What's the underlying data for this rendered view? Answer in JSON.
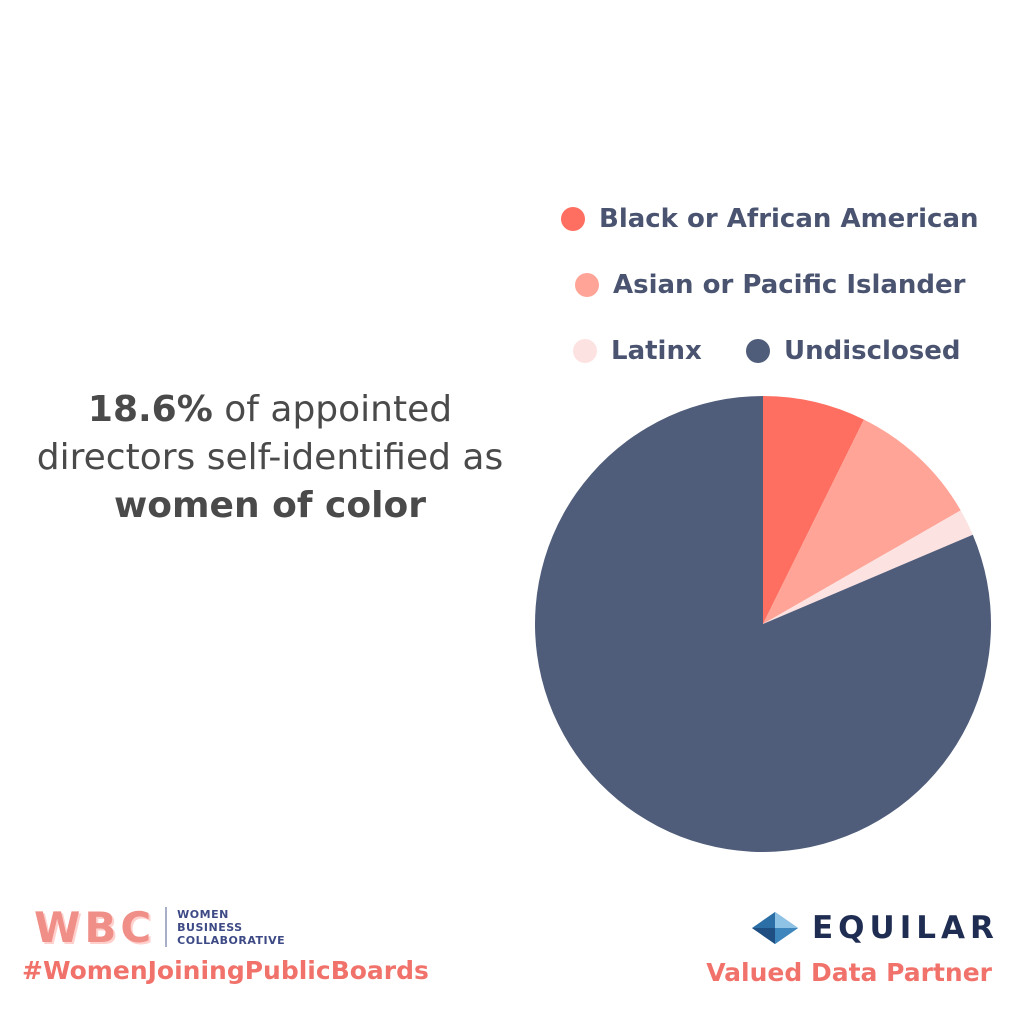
{
  "chart_data": {
    "type": "pie",
    "title": "",
    "categories": [
      "Black or African American",
      "Asian or Pacific Islander",
      "Latinx",
      "Undisclosed"
    ],
    "values": [
      7.3,
      9.4,
      1.9,
      81.4
    ],
    "colors": [
      "#ff6f61",
      "#ffa497",
      "#fde2e2",
      "#505d7a"
    ],
    "start_angle_deg": 0,
    "direction": "clockwise",
    "legend_placement": "top-right"
  },
  "headline": {
    "stat": "18.6%",
    "text_1": " of appointed",
    "text_2": "directors self-identified as",
    "emphasis": "women of color"
  },
  "footer": {
    "wbc_letters": "WBC",
    "wbc_line_1": "WOMEN",
    "wbc_line_2": "BUSINESS",
    "wbc_line_3": "COLLABORATIVE",
    "hashtag": "#WomenJoiningPublicBoards",
    "equilar_name": "EQUILAR",
    "partner_label": "Valued Data Partner"
  },
  "icons": {
    "equilar_logo": "equilar-diamond-icon"
  }
}
